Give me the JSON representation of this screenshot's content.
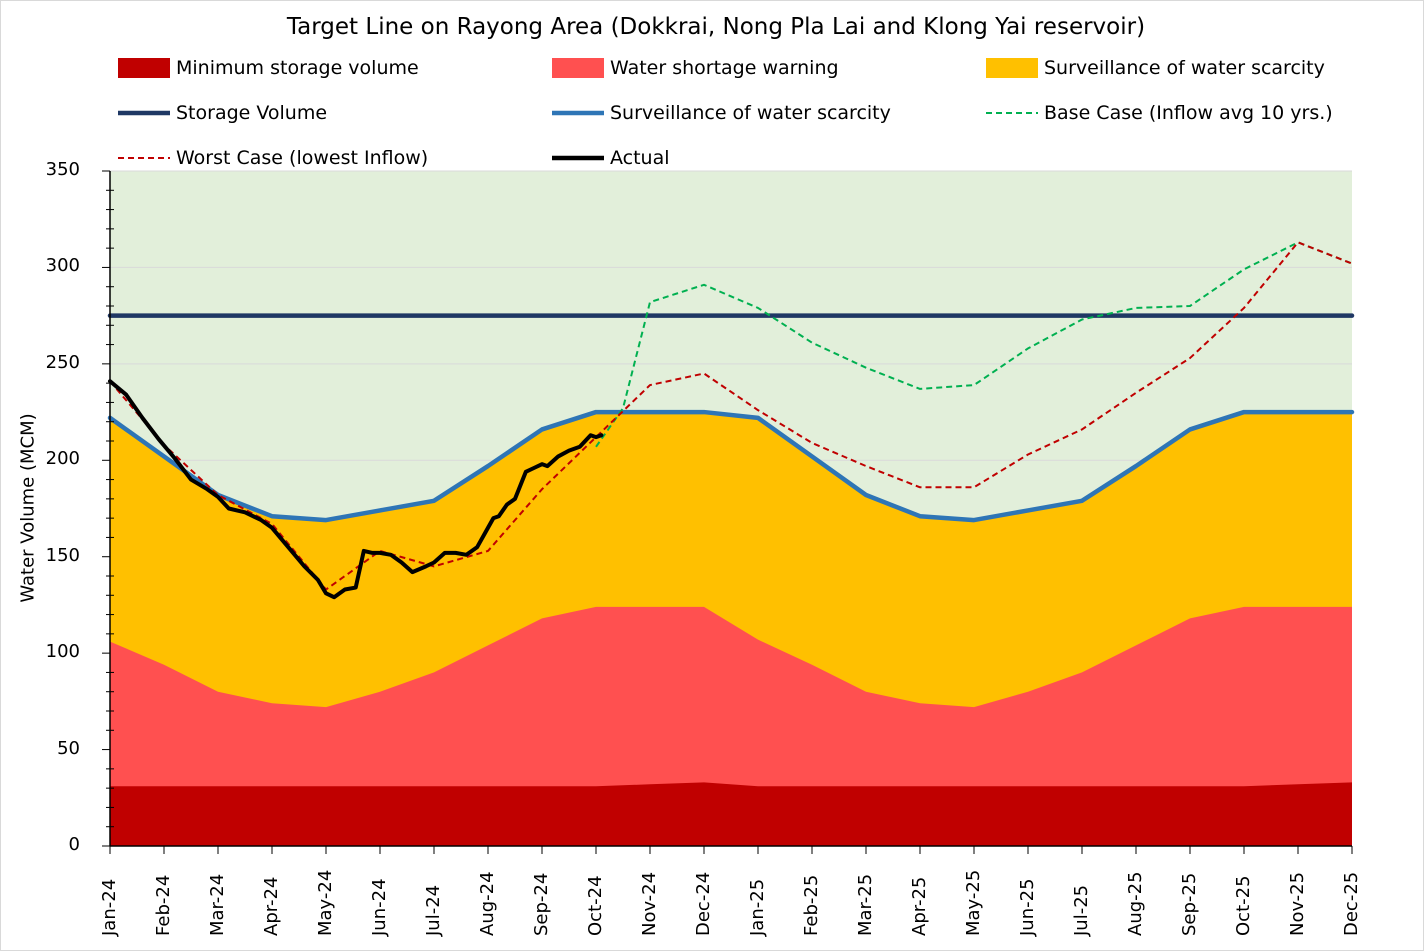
{
  "chart_data": {
    "type": "area",
    "title": "Target Line on Rayong Area (Dokkrai, Nong Pla Lai and Klong Yai reservoir)",
    "xlabel": "",
    "ylabel": "Water Volume (MCM)",
    "ylim": [
      0,
      350
    ],
    "yticks": [
      "0",
      "50",
      "100",
      "150",
      "200",
      "250",
      "300",
      "350"
    ],
    "grid": true,
    "legend_position": "top",
    "categories": [
      "Jan-24",
      "Feb-24",
      "Mar-24",
      "Apr-24",
      "May-24",
      "Jun-24",
      "Jul-24",
      "Aug-24",
      "Sep-24",
      "Oct-24",
      "Nov-24",
      "Dec-24",
      "Jan-25",
      "Feb-25",
      "Mar-25",
      "Apr-25",
      "May-25",
      "Jun-25",
      "Jul-25",
      "Aug-25",
      "Sep-25",
      "Oct-25",
      "Nov-25",
      "Dec-25"
    ],
    "series": [
      {
        "name": "Minimum storage volume",
        "kind": "area",
        "color": "#c00000",
        "values": [
          31,
          31,
          31,
          31,
          31,
          31,
          31,
          31,
          31,
          31,
          32,
          33,
          31,
          31,
          31,
          31,
          31,
          31,
          31,
          31,
          31,
          31,
          32,
          33
        ]
      },
      {
        "name": "Water shortage warning",
        "kind": "area",
        "color": "#ff5050",
        "values": [
          106,
          94,
          80,
          74,
          72,
          80,
          90,
          104,
          118,
          124,
          124,
          124,
          107,
          94,
          80,
          74,
          72,
          80,
          90,
          104,
          118,
          124,
          124,
          124
        ]
      },
      {
        "name": "Surveillance of water scarcity",
        "kind": "area",
        "color": "#ffc000",
        "values": [
          222,
          202,
          182,
          171,
          169,
          174,
          179,
          197,
          216,
          225,
          225,
          225,
          222,
          202,
          182,
          171,
          169,
          174,
          179,
          197,
          216,
          225,
          225,
          225
        ]
      },
      {
        "name": "Storage Volume",
        "kind": "line",
        "color": "#1f3864",
        "values": [
          275,
          275,
          275,
          275,
          275,
          275,
          275,
          275,
          275,
          275,
          275,
          275,
          275,
          275,
          275,
          275,
          275,
          275,
          275,
          275,
          275,
          275,
          275,
          275
        ]
      },
      {
        "name": "Surveillance of water scarcity",
        "kind": "line",
        "color": "#2e75b6",
        "values": [
          222,
          202,
          182,
          171,
          169,
          174,
          179,
          197,
          216,
          225,
          225,
          225,
          222,
          202,
          182,
          171,
          169,
          174,
          179,
          197,
          216,
          225,
          225,
          225
        ]
      },
      {
        "name": "Base Case (Inflow avg 10 yrs.)",
        "kind": "dash",
        "color": "#00b050",
        "x": [
          9,
          9.5,
          10,
          11,
          12,
          13,
          14,
          15,
          16,
          17,
          18,
          19,
          20,
          21,
          22,
          23
        ],
        "values": [
          207,
          227,
          282,
          291,
          279,
          261,
          248,
          237,
          239,
          258,
          273,
          279,
          280,
          299,
          313,
          302
        ]
      },
      {
        "name": "Worst Case (lowest Inflow)",
        "kind": "dash",
        "color": "#c00000",
        "x": [
          0,
          1,
          2,
          3,
          4,
          5,
          6,
          7,
          8,
          9,
          10,
          11,
          12,
          13,
          14,
          15,
          16,
          17,
          18,
          19,
          20,
          21,
          22,
          23
        ],
        "values": [
          241,
          208,
          182,
          167,
          133,
          153,
          145,
          153,
          185,
          212,
          239,
          245,
          226,
          209,
          197,
          186,
          186,
          203,
          216,
          235,
          253,
          279,
          313,
          302
        ]
      },
      {
        "name": "Actual",
        "kind": "line",
        "color": "#000000",
        "x": [
          0,
          0.3,
          0.6,
          0.9,
          1.2,
          1.5,
          1.8,
          2.0,
          2.2,
          2.5,
          2.8,
          3.0,
          3.3,
          3.6,
          3.85,
          4.0,
          4.15,
          4.35,
          4.55,
          4.7,
          4.85,
          5.0,
          5.2,
          5.4,
          5.6,
          5.85,
          6.0,
          6.2,
          6.4,
          6.6,
          6.8,
          7.0,
          7.1,
          7.2,
          7.35,
          7.5,
          7.7,
          7.85,
          8.0,
          8.1,
          8.3,
          8.5,
          8.7,
          8.9,
          9.0,
          9.1
        ],
        "values": [
          241,
          234,
          222,
          211,
          201,
          190,
          185,
          181,
          175,
          173,
          169,
          165,
          155,
          145,
          138,
          131,
          129,
          133,
          134,
          153,
          152,
          152,
          151,
          147,
          142,
          145,
          147,
          152,
          152,
          151,
          155,
          165,
          170,
          171,
          177,
          180,
          194,
          196,
          198,
          197,
          202,
          205,
          207,
          213,
          212,
          213
        ]
      }
    ]
  }
}
